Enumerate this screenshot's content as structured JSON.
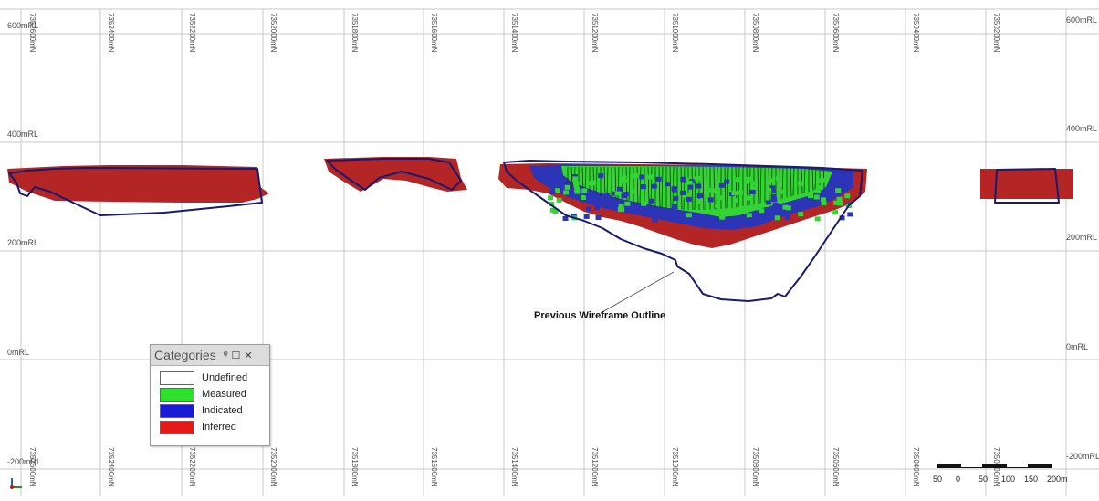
{
  "viewport": {
    "rl_labels_left": [
      "600mRL",
      "400mRL",
      "200mRL",
      "0mRL",
      "-200mRL"
    ],
    "rl_labels_right": [
      "600mRL",
      "400mRL",
      "200mRL",
      "0mRL",
      "-200mRL"
    ],
    "northing_labels": [
      "7352600mN",
      "7352400mN",
      "7352200mN",
      "7352000mN",
      "7351800mN",
      "7351600mN",
      "7351400mN",
      "7351200mN",
      "7351000mN",
      "7350800mN",
      "7350600mN",
      "7350400mN",
      "7350200mN"
    ],
    "annotation": "Previous Wireframe Outline"
  },
  "legend": {
    "title": "Categories",
    "controls": [
      "ᵠ",
      "☐",
      "✕"
    ],
    "items": [
      {
        "label": "Undefined",
        "color": "#ffffff"
      },
      {
        "label": "Measured",
        "color": "#2ee02e"
      },
      {
        "label": "Indicated",
        "color": "#1b1bd6"
      },
      {
        "label": "Inferred",
        "color": "#e21a1a"
      }
    ]
  },
  "scale_bar": {
    "labels": [
      "50",
      "0",
      "50",
      "100",
      "150",
      "200m"
    ]
  },
  "colors": {
    "inferred_block": "#b42525",
    "indicated_block": "#2c34b8",
    "measured_block": "#33d433",
    "outline": "#1a1a6e",
    "grid": "#c8c8c8"
  }
}
